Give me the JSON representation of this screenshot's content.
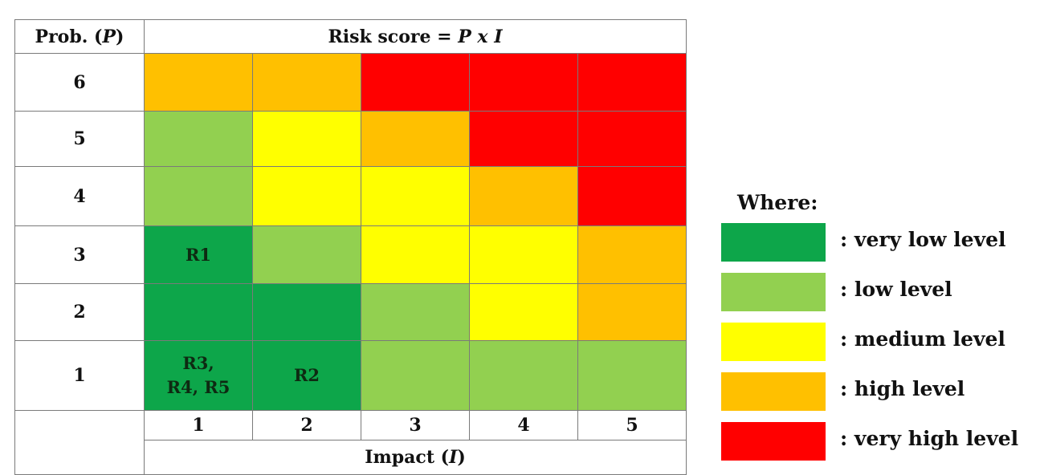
{
  "colors": {
    "very_low": "#0da64a",
    "low": "#92d050",
    "medium": "#ffff00",
    "high": "#ffc000",
    "very_high": "#ff0000"
  },
  "header": {
    "prob_label": "Prob. (",
    "prob_var": "P",
    "prob_close": ")",
    "score_label": "Risk score = ",
    "score_p": "P",
    "score_x": " x ",
    "score_i": "I"
  },
  "rows": [
    {
      "prob": "6",
      "cells": [
        {
          "level": "high",
          "label": ""
        },
        {
          "level": "high",
          "label": ""
        },
        {
          "level": "very_high",
          "label": ""
        },
        {
          "level": "very_high",
          "label": ""
        },
        {
          "level": "very_high",
          "label": ""
        }
      ]
    },
    {
      "prob": "5",
      "cells": [
        {
          "level": "low",
          "label": ""
        },
        {
          "level": "medium",
          "label": ""
        },
        {
          "level": "high",
          "label": ""
        },
        {
          "level": "very_high",
          "label": ""
        },
        {
          "level": "very_high",
          "label": ""
        }
      ]
    },
    {
      "prob": "4",
      "cells": [
        {
          "level": "low",
          "label": ""
        },
        {
          "level": "medium",
          "label": ""
        },
        {
          "level": "medium",
          "label": ""
        },
        {
          "level": "high",
          "label": ""
        },
        {
          "level": "very_high",
          "label": ""
        }
      ]
    },
    {
      "prob": "3",
      "cells": [
        {
          "level": "very_low",
          "label": "R1"
        },
        {
          "level": "low",
          "label": ""
        },
        {
          "level": "medium",
          "label": ""
        },
        {
          "level": "medium",
          "label": ""
        },
        {
          "level": "high",
          "label": ""
        }
      ]
    },
    {
      "prob": "2",
      "cells": [
        {
          "level": "very_low",
          "label": ""
        },
        {
          "level": "very_low",
          "label": ""
        },
        {
          "level": "low",
          "label": ""
        },
        {
          "level": "medium",
          "label": ""
        },
        {
          "level": "high",
          "label": ""
        }
      ]
    },
    {
      "prob": "1",
      "cells": [
        {
          "level": "very_low",
          "label": "R3,\nR4, R5"
        },
        {
          "level": "very_low",
          "label": "R2"
        },
        {
          "level": "low",
          "label": ""
        },
        {
          "level": "low",
          "label": ""
        },
        {
          "level": "low",
          "label": ""
        }
      ]
    }
  ],
  "impact_values": [
    "1",
    "2",
    "3",
    "4",
    "5"
  ],
  "impact": {
    "label": "Impact (",
    "var": "I",
    "close": ")"
  },
  "legend": {
    "title": "Where:",
    "items": [
      {
        "level": "very_low",
        "text": ": very low level"
      },
      {
        "level": "low",
        "text": ": low level"
      },
      {
        "level": "medium",
        "text": ": medium level"
      },
      {
        "level": "high",
        "text": ": high level"
      },
      {
        "level": "very_high",
        "text": ": very high level"
      }
    ]
  }
}
